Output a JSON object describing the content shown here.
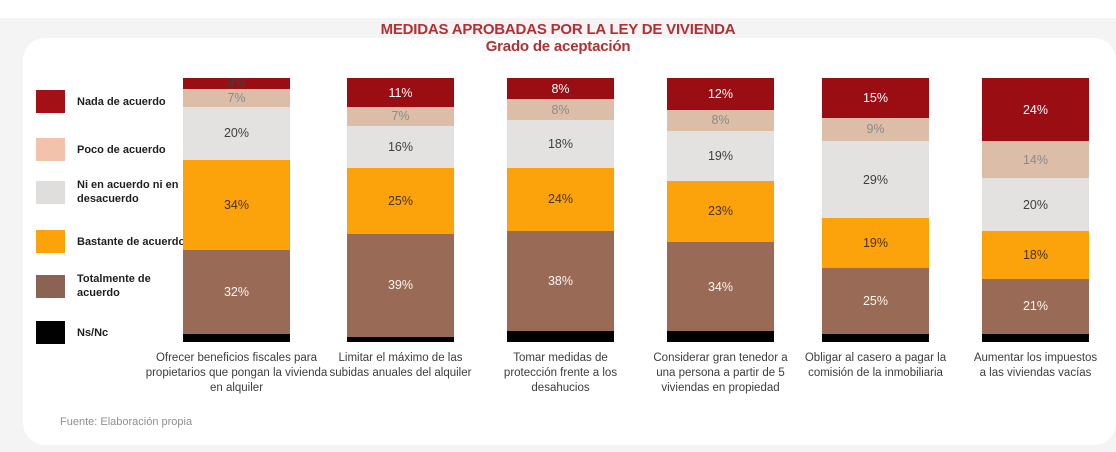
{
  "title": "MEDIDAS APROBADAS POR LA LEY DE VIVIENDA",
  "subtitle": "Grado de aceptación",
  "source": "Fuente: Elaboración propia",
  "colors": {
    "title": "#b23034",
    "page_band": "#f4f4f4",
    "card": "#ffffff"
  },
  "chart_data": {
    "type": "bar",
    "stacked": true,
    "orientation": "vertical",
    "value_suffix": "%",
    "ylim": [
      0,
      100
    ],
    "legend_position": "left",
    "grid": false,
    "title": "MEDIDAS APROBADAS POR LA LEY DE VIVIENDA",
    "subtitle": "Grado de aceptación",
    "categories": [
      "Ofrecer beneficios fiscales para propietarios que pongan la vivienda en alquiler",
      "Limitar el máximo de las subidas anuales del alquiler",
      "Tomar medidas de protección frente  a los desahucios",
      "Considerar gran tenedor  a una persona a partir de 5 viviendas en propiedad",
      "Obligar al casero a pagar la comisión de la inmobiliaria",
      "Aumentar  los impuestos a las viviendas vacías"
    ],
    "series": [
      {
        "name": "Nada de acuerdo",
        "color": "#9a0d12",
        "legend_color": "#a31116",
        "label_color": "#ffffff",
        "small_label_color": "#3f3f3f",
        "values": [
          4,
          11,
          8,
          12,
          15,
          24
        ]
      },
      {
        "name": "Poco de acuerdo",
        "color": "#dcbda7",
        "legend_color": "#f2c2ab",
        "label_color": "#8a8a8a",
        "values": [
          7,
          7,
          8,
          8,
          9,
          14
        ]
      },
      {
        "name": "Ni en acuerdo ni en desacuerdo",
        "color": "#e4e2e0",
        "legend_color": "#e0dedc",
        "label_color": "#3f3f3f",
        "values": [
          20,
          16,
          18,
          19,
          29,
          20
        ]
      },
      {
        "name": "Bastante de acuerdo",
        "color": "#fca20b",
        "legend_color": "#fca20b",
        "label_color": "#473413",
        "values": [
          34,
          25,
          24,
          23,
          19,
          18
        ]
      },
      {
        "name": "Totalmente de acuerdo",
        "color": "#996b57",
        "legend_color": "#8c6353",
        "label_color": "#fbf4ef",
        "values": [
          32,
          39,
          38,
          34,
          25,
          21
        ]
      },
      {
        "name": "Ns/Nc",
        "color": "#010101",
        "legend_color": "#010101",
        "label_color": "#ffffff",
        "show_labels": false,
        "values": [
          3,
          2,
          4,
          4,
          3,
          3
        ]
      }
    ]
  }
}
